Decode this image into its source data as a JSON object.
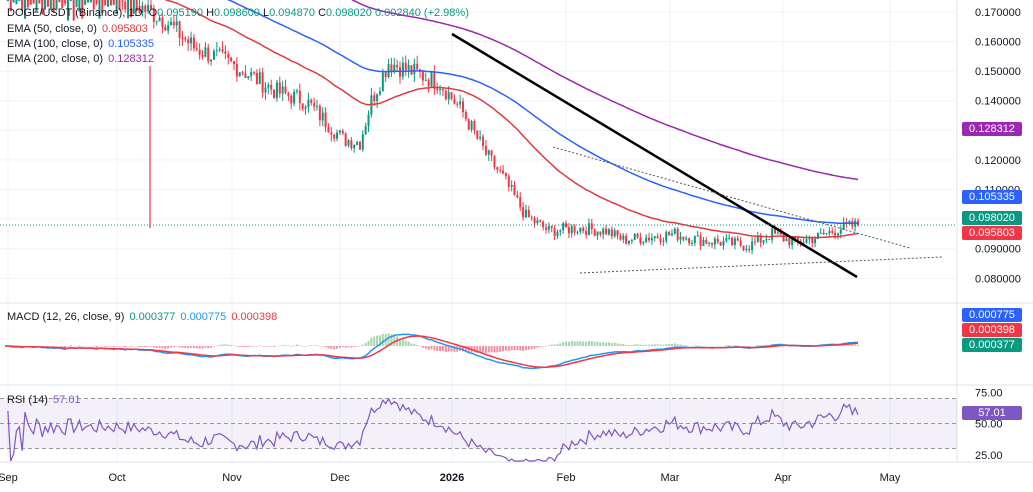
{
  "colors": {
    "up": "#089981",
    "down": "#f23645",
    "ema50": "#e03a3e",
    "ema100": "#2962ff",
    "ema200": "#9c27b0",
    "macd": "#2196f3",
    "signal": "#f23645",
    "rsi": "#7e57c2",
    "close_tag": "#089981",
    "text": "#131722",
    "muted": "#787b86"
  },
  "legend": {
    "symbol": "DOGE/USDT (Binance), 1D",
    "o_label": "O",
    "o": "0.095190",
    "h_label": "H",
    "h": "0.098600",
    "l_label": "L",
    "l": "0.094870",
    "c_label": "C",
    "c": "0.098020",
    "chg": "0.002840 (+2.98%)",
    "ema50_label": "EMA (50, close, 0)",
    "ema50_val": "0.095803",
    "ema100_label": "EMA (100, close, 0)",
    "ema100_val": "0.105335",
    "ema200_label": "EMA (200, close, 0)",
    "ema200_val": "0.128312",
    "macd_label": "MACD (12, 26, close, 9)",
    "macd_hist": "0.000377",
    "macd_line": "0.000775",
    "macd_signal": "0.000398",
    "rsi_label": "RSI (14)",
    "rsi_val": "57.01"
  },
  "price_tags": {
    "ema200": "0.128312",
    "ema100": "0.105335",
    "close": "0.098020",
    "ema50": "0.095803",
    "macd_line": "0.000775",
    "macd_signal": "0.000398",
    "macd_hist": "0.000377",
    "rsi": "57.01"
  },
  "chart_data": {
    "type": "candlestick",
    "title": "DOGE/USDT (Binance), 1D",
    "ylim": [
      0.072,
      0.172
    ],
    "yticks": [
      "0.170000",
      "0.160000",
      "0.150000",
      "0.140000",
      "0.130000",
      "0.120000",
      "0.110000",
      "0.100000",
      "0.090000",
      "0.080000"
    ],
    "xticks": [
      "Sep",
      "Oct",
      "Nov",
      "Dec",
      "2026",
      "Feb",
      "Mar",
      "Apr",
      "May"
    ],
    "rsi_ticks": [
      "75.00",
      "50.00",
      "25.00"
    ],
    "grid": true,
    "annotations": [
      "descending trendline",
      "symmetrical triangle"
    ]
  }
}
